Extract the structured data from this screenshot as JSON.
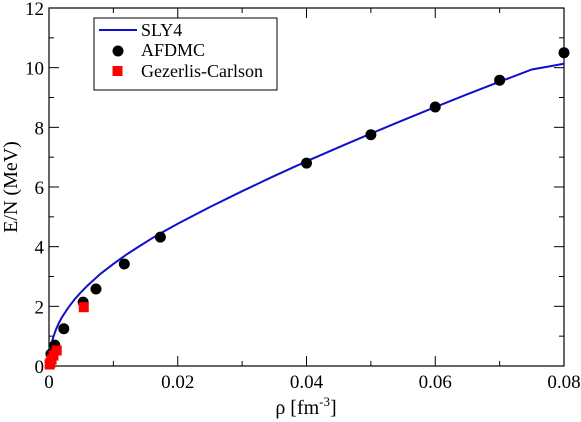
{
  "chart_data": {
    "type": "scatter",
    "title": "",
    "xlabel": "ρ [fm",
    "xlabel_sup": "-3",
    "xlabel_close": "]",
    "ylabel": "E/N (MeV)",
    "xlim": [
      0,
      0.08
    ],
    "ylim": [
      0,
      12
    ],
    "x_ticks": [
      0,
      0.02,
      0.04,
      0.06,
      0.08
    ],
    "x_tick_labels": [
      "0",
      "0.02",
      "0.04",
      "0.06",
      "0.08"
    ],
    "y_ticks": [
      0,
      2,
      4,
      6,
      8,
      10,
      12
    ],
    "y_tick_labels": [
      "0",
      "2",
      "4",
      "6",
      "8",
      "10",
      "12"
    ],
    "grid": false,
    "legend_position": "top-left",
    "series": [
      {
        "name": "SLY4",
        "kind": "line",
        "color": "#1010cc",
        "x": [
          0.0001,
          0.0003,
          0.0006,
          0.001,
          0.0015,
          0.002,
          0.003,
          0.004,
          0.005,
          0.006,
          0.008,
          0.01,
          0.012,
          0.014,
          0.016,
          0.018,
          0.02,
          0.025,
          0.03,
          0.035,
          0.04,
          0.045,
          0.05,
          0.055,
          0.06,
          0.065,
          0.07,
          0.075,
          0.08
        ],
        "y": [
          0.3,
          0.62,
          0.92,
          1.18,
          1.43,
          1.63,
          1.96,
          2.24,
          2.48,
          2.7,
          3.09,
          3.42,
          3.73,
          4.01,
          4.28,
          4.53,
          4.77,
          5.33,
          5.86,
          6.37,
          6.86,
          7.33,
          7.79,
          8.24,
          8.68,
          9.11,
          9.53,
          9.94,
          10.13
        ]
      },
      {
        "name": "AFDMC",
        "kind": "marker-circle",
        "color": "#000000",
        "x": [
          0.0003,
          0.0009,
          0.0023,
          0.0053,
          0.0073,
          0.0117,
          0.0173,
          0.04,
          0.05,
          0.06,
          0.07,
          0.08
        ],
        "y": [
          0.4,
          0.7,
          1.25,
          2.14,
          2.58,
          3.42,
          4.32,
          6.8,
          7.75,
          8.68,
          9.58,
          10.5
        ]
      },
      {
        "name": "Gezerlis-Carlson",
        "kind": "marker-square",
        "color": "#ff0000",
        "x": [
          0.0001,
          0.0002,
          0.0004,
          0.0007,
          0.0012,
          0.0054
        ],
        "y": [
          0.05,
          0.1,
          0.22,
          0.35,
          0.52,
          1.97
        ]
      }
    ]
  }
}
